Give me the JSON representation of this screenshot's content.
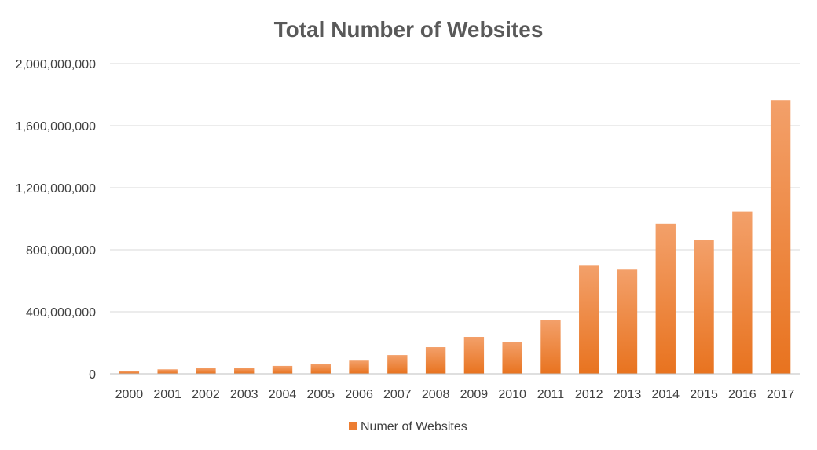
{
  "chart_data": {
    "type": "bar",
    "title": "Total Number of Websites",
    "xlabel": "",
    "ylabel": "",
    "categories": [
      "2000",
      "2001",
      "2002",
      "2003",
      "2004",
      "2005",
      "2006",
      "2007",
      "2008",
      "2009",
      "2010",
      "2011",
      "2012",
      "2013",
      "2014",
      "2015",
      "2016",
      "2017"
    ],
    "series": [
      {
        "name": "Numer of Websites",
        "values": [
          17000000,
          29000000,
          38000000,
          40000000,
          51000000,
          64000000,
          85000000,
          121000000,
          172000000,
          238000000,
          207000000,
          347000000,
          697000000,
          672000000,
          968000000,
          863000000,
          1045000000,
          1766000000
        ],
        "color": "#ED7D31"
      }
    ],
    "ylim": [
      0,
      2000000000
    ],
    "yticks": [
      0,
      400000000,
      800000000,
      1200000000,
      1600000000,
      2000000000
    ],
    "ytick_labels": [
      "0",
      "400,000,000",
      "800,000,000",
      "1,200,000,000",
      "1,600,000,000",
      "2,000,000,000"
    ],
    "grid": true,
    "legend_position": "bottom"
  }
}
